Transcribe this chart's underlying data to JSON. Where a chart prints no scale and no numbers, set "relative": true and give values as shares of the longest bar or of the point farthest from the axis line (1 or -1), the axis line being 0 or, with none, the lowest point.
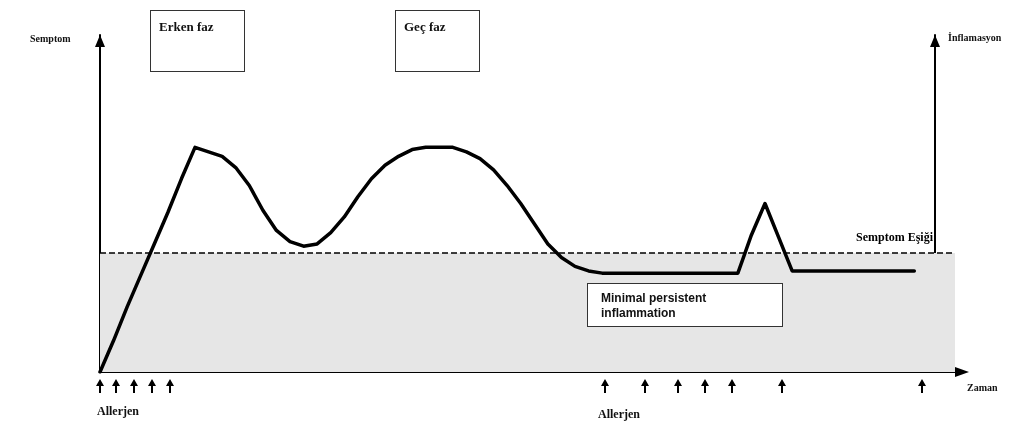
{
  "chart_data": {
    "type": "line",
    "relative": true,
    "xlabel": "Zaman",
    "categories": [
      null,
      null,
      null,
      null,
      null,
      null,
      null,
      null,
      null,
      null,
      null,
      null,
      null,
      null,
      null,
      null,
      null,
      null,
      null,
      null,
      null,
      null,
      null,
      null,
      null,
      null,
      null,
      null,
      null,
      null,
      null,
      null,
      null,
      null,
      null,
      null,
      null,
      null,
      null,
      null,
      null,
      null,
      null,
      null,
      null,
      null,
      null,
      null,
      null,
      null,
      null,
      null,
      null,
      null,
      null,
      null,
      null,
      null,
      null,
      null,
      null,
      null,
      null,
      null
    ],
    "series": [
      {
        "color": "#000000",
        "values": [
          0,
          0.14,
          0.29,
          0.43,
          0.57,
          0.71,
          0.86,
          1,
          0.98,
          0.96,
          0.91,
          0.83,
          0.72,
          0.63,
          0.58,
          0.56,
          0.57,
          0.62,
          0.69,
          0.78,
          0.86,
          0.92,
          0.96,
          0.99,
          1,
          1,
          1,
          0.98,
          0.95,
          0.9,
          0.83,
          0.75,
          0.66,
          0.57,
          0.51,
          0.47,
          0.45,
          0.44,
          0.44,
          0.44,
          0.44,
          0.44,
          0.44,
          0.44,
          0.44,
          0.44,
          0.44,
          0.44,
          0.61,
          0.75,
          0.6,
          0.45,
          0.45,
          0.45,
          0.45,
          0.45,
          0.45,
          0.45,
          0.45,
          0.45,
          0.45,
          null,
          null,
          null
        ]
      }
    ],
    "ref_lines": [
      {
        "axis": "y",
        "value": 0.53,
        "label": "Semptom Eşiği",
        "color": "#000000",
        "line_style": "dashed"
      }
    ],
    "bands": [
      {
        "axis": "y",
        "from": 0,
        "to": 0.53,
        "color": "#e6e6e6"
      }
    ],
    "annotations": [
      "Erken faz",
      "Geç faz",
      "Minimal persistent inflammation",
      "Allerjen",
      "Allerjen",
      "Semptom",
      "İnflamasyon"
    ],
    "marker": "none",
    "line_style": "solid",
    "grid": false
  }
}
